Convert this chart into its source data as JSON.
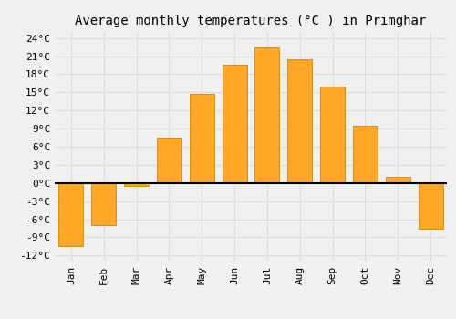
{
  "months": [
    "Jan",
    "Feb",
    "Mar",
    "Apr",
    "May",
    "Jun",
    "Jul",
    "Aug",
    "Sep",
    "Oct",
    "Nov",
    "Dec"
  ],
  "values": [
    -10.5,
    -7.0,
    -0.5,
    7.5,
    14.8,
    19.5,
    22.5,
    20.5,
    16.0,
    9.5,
    1.0,
    -7.5
  ],
  "bar_color": "#FFA726",
  "bar_edge_color": "#CC8800",
  "title": "Average monthly temperatures (°C ) in Primghar",
  "ylim": [
    -13,
    25
  ],
  "yticks": [
    -12,
    -9,
    -6,
    -3,
    0,
    3,
    6,
    9,
    12,
    15,
    18,
    21,
    24
  ],
  "ytick_labels": [
    "-12°C",
    "-9°C",
    "-6°C",
    "-3°C",
    "0°C",
    "3°C",
    "6°C",
    "9°C",
    "12°C",
    "15°C",
    "18°C",
    "21°C",
    "24°C"
  ],
  "background_color": "#f0f0f0",
  "grid_color": "#dddddd",
  "zero_line_color": "#000000",
  "title_fontsize": 10,
  "tick_fontsize": 8
}
